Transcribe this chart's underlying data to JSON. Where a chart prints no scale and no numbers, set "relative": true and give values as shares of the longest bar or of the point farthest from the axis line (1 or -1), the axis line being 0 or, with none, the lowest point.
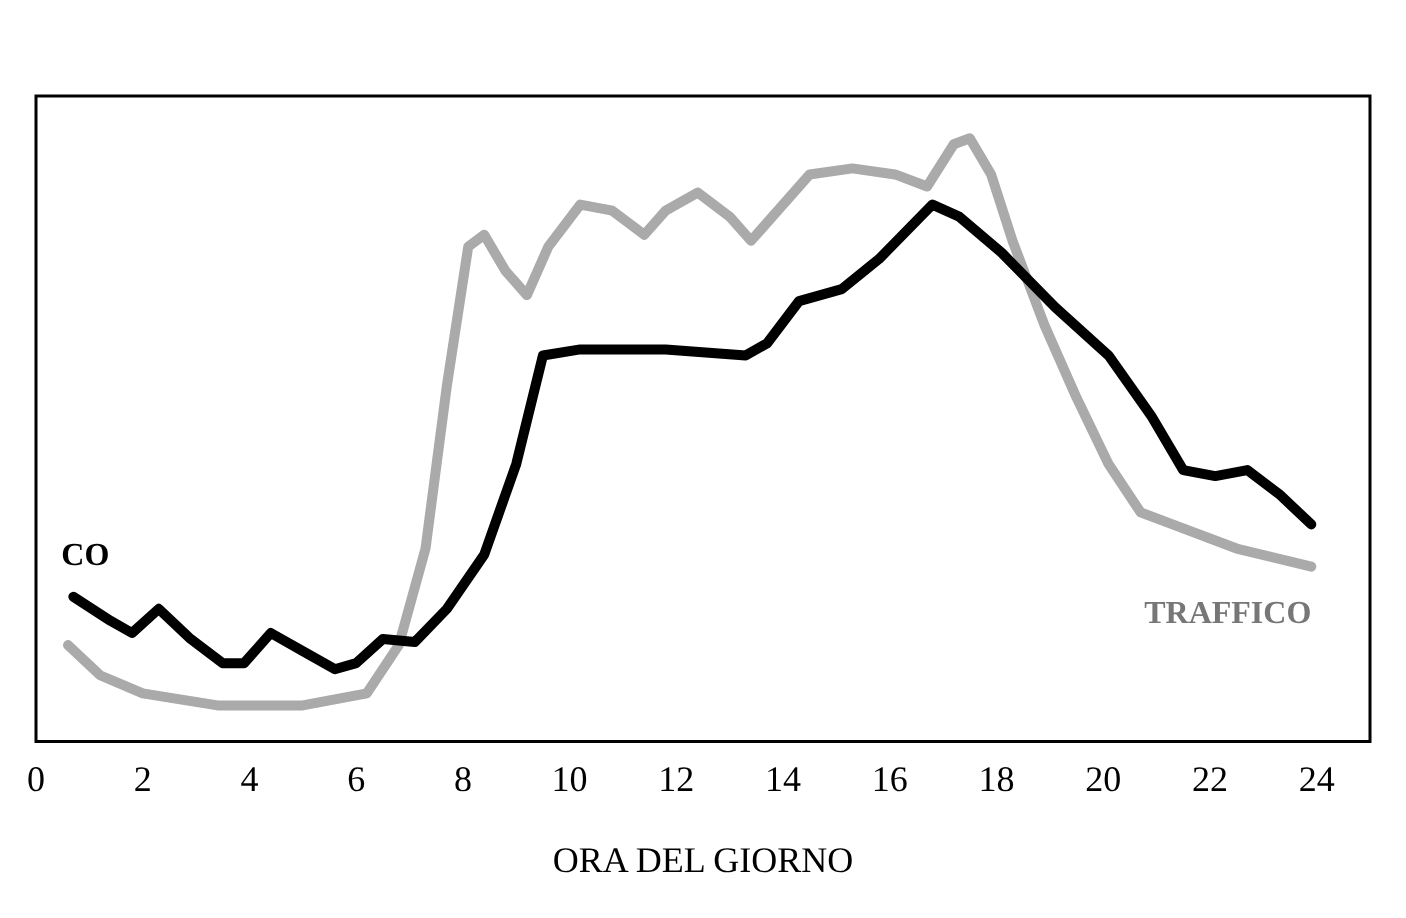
{
  "chart_data": {
    "type": "line",
    "xlabel": "ORA DEL GIORNO",
    "relative": true,
    "xlim": [
      0,
      25
    ],
    "xticks": [
      0,
      2,
      4,
      6,
      8,
      10,
      12,
      14,
      16,
      18,
      20,
      22,
      24
    ],
    "legend": false,
    "grid": false,
    "marker": "none",
    "series": [
      {
        "name": "CO",
        "color": "#000000",
        "x": [
          0.7,
          1.4,
          1.8,
          2.3,
          2.9,
          3.5,
          3.9,
          4.4,
          5.0,
          5.6,
          6.0,
          6.5,
          7.1,
          7.7,
          8.4,
          9.0,
          9.5,
          10.2,
          11.8,
          13.3,
          13.7,
          14.3,
          15.1,
          15.8,
          16.8,
          17.3,
          18.1,
          19.1,
          20.1,
          20.9,
          21.5,
          22.1,
          22.7,
          23.3,
          23.9
        ],
        "values": [
          0.24,
          0.2,
          0.18,
          0.22,
          0.17,
          0.13,
          0.13,
          0.18,
          0.15,
          0.12,
          0.13,
          0.17,
          0.165,
          0.22,
          0.31,
          0.46,
          0.64,
          0.65,
          0.65,
          0.64,
          0.66,
          0.73,
          0.75,
          0.8,
          0.89,
          0.87,
          0.81,
          0.72,
          0.64,
          0.54,
          0.45,
          0.44,
          0.45,
          0.41,
          0.36
        ]
      },
      {
        "name": "TRAFFICO",
        "color": "#aaaaaa",
        "x": [
          0.6,
          1.2,
          2.0,
          3.4,
          5.0,
          6.2,
          6.8,
          7.3,
          7.7,
          8.1,
          8.4,
          8.8,
          9.2,
          9.6,
          10.2,
          10.8,
          11.4,
          11.8,
          12.4,
          13.0,
          13.4,
          13.9,
          14.5,
          15.3,
          16.1,
          16.7,
          17.2,
          17.5,
          17.9,
          18.3,
          18.9,
          19.5,
          20.1,
          20.7,
          21.3,
          22.5,
          23.9
        ],
        "values": [
          0.16,
          0.11,
          0.08,
          0.06,
          0.06,
          0.08,
          0.16,
          0.32,
          0.59,
          0.82,
          0.84,
          0.78,
          0.74,
          0.82,
          0.89,
          0.88,
          0.84,
          0.88,
          0.91,
          0.87,
          0.83,
          0.88,
          0.94,
          0.95,
          0.94,
          0.92,
          0.99,
          1,
          0.94,
          0.83,
          0.69,
          0.57,
          0.46,
          0.38,
          0.36,
          0.32,
          0.29
        ]
      }
    ]
  }
}
